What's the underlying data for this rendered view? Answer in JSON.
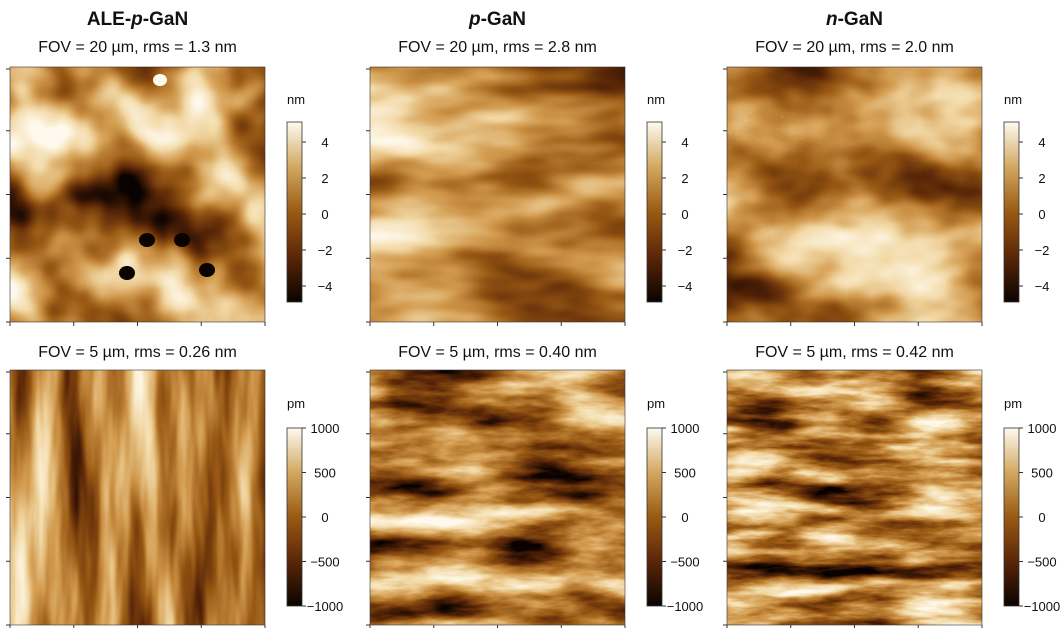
{
  "columns": [
    {
      "title": {
        "prefix": "ALE-",
        "italic": "p",
        "suffix": "-GaN"
      },
      "panels": [
        {
          "caption": "FOV = 20 µm, rms = 1.3 nm",
          "colorbar": {
            "unit": "nm",
            "ticks": [
              "4",
              "2",
              "0",
              "−2",
              "−4"
            ]
          }
        },
        {
          "caption": "FOV = 5 µm, rms = 0.26 nm",
          "colorbar": {
            "unit": "pm",
            "ticks": [
              "1000",
              "500",
              "0",
              "−500",
              "−1000"
            ]
          }
        }
      ]
    },
    {
      "title": {
        "italic": "p",
        "suffix": "-GaN"
      },
      "panels": [
        {
          "caption": "FOV = 20 µm, rms = 2.8 nm",
          "colorbar": {
            "unit": "nm",
            "ticks": [
              "4",
              "2",
              "0",
              "−2",
              "−4"
            ]
          }
        },
        {
          "caption": "FOV = 5 µm, rms = 0.40 nm",
          "colorbar": {
            "unit": "pm",
            "ticks": [
              "1000",
              "500",
              "0",
              "−500",
              "−1000"
            ]
          }
        }
      ]
    },
    {
      "title": {
        "italic": "n",
        "suffix": "-GaN"
      },
      "panels": [
        {
          "caption": "FOV = 20 µm, rms = 2.0 nm",
          "colorbar": {
            "unit": "nm",
            "ticks": [
              "4",
              "2",
              "0",
              "−2",
              "−4"
            ]
          }
        },
        {
          "caption": "FOV = 5 µm, rms = 0.42 nm",
          "colorbar": {
            "unit": "pm",
            "ticks": [
              "1000",
              "500",
              "0",
              "−500",
              "−1000"
            ]
          }
        }
      ]
    }
  ]
}
